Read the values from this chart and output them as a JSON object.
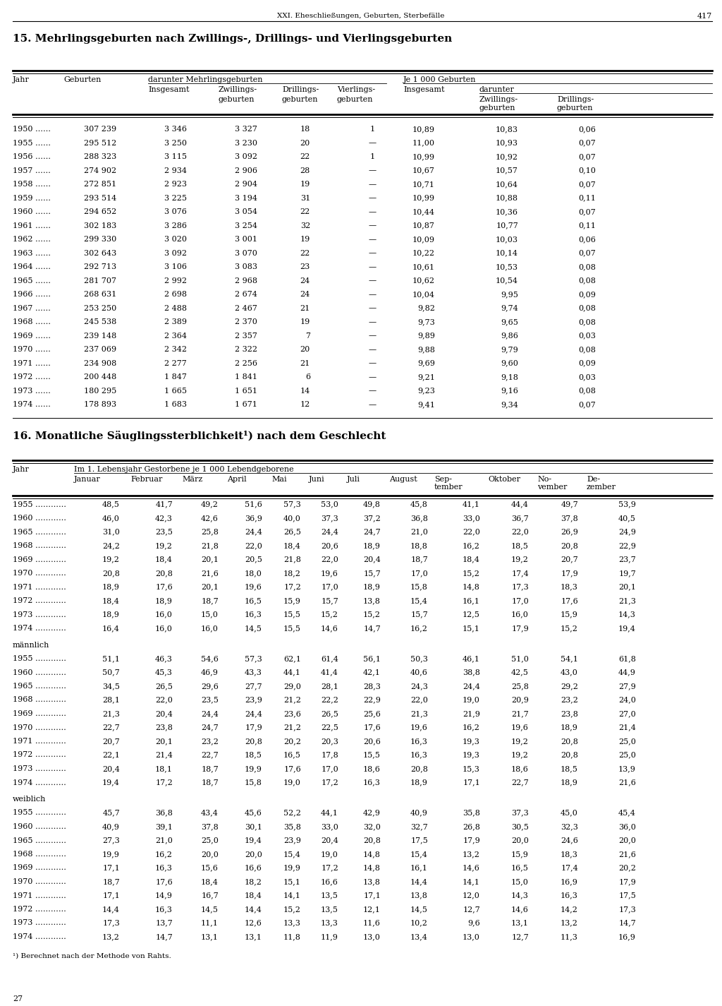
{
  "page_header": "XXI. Eheschließungen, Geburten, Sterbefälle",
  "page_number": "417",
  "section15_title": "15. Mehrlingsgeburten nach Zwillings-, Drillings- und Vierlingsgeburten",
  "section16_title": "16. Monatliche Säuglingssterblichkeit¹) nach dem Geschlecht",
  "footnote": "¹) Berechnet nach der Methode von Rahts.",
  "footer_number": "27",
  "table1_data": [
    [
      "1950 ……",
      "307 239",
      "3 346",
      "3 327",
      "18",
      "1",
      "10,89",
      "10,83",
      "0,06"
    ],
    [
      "1955 ……",
      "295 512",
      "3 250",
      "3 230",
      "20",
      "—",
      "11,00",
      "10,93",
      "0,07"
    ],
    [
      "1956 ……",
      "288 323",
      "3 115",
      "3 092",
      "22",
      "1",
      "10,99",
      "10,92",
      "0,07"
    ],
    [
      "1957 ……",
      "274 902",
      "2 934",
      "2 906",
      "28",
      "—",
      "10,67",
      "10,57",
      "0,10"
    ],
    [
      "1958 ……",
      "272 851",
      "2 923",
      "2 904",
      "19",
      "—",
      "10,71",
      "10,64",
      "0,07"
    ],
    [
      "1959 ……",
      "293 514",
      "3 225",
      "3 194",
      "31",
      "—",
      "10,99",
      "10,88",
      "0,11"
    ],
    [
      "1960 ……",
      "294 652",
      "3 076",
      "3 054",
      "22",
      "—",
      "10,44",
      "10,36",
      "0,07"
    ],
    [
      "1961 ……",
      "302 183",
      "3 286",
      "3 254",
      "32",
      "—",
      "10,87",
      "10,77",
      "0,11"
    ],
    [
      "1962 ……",
      "299 330",
      "3 020",
      "3 001",
      "19",
      "—",
      "10,09",
      "10,03",
      "0,06"
    ],
    [
      "1963 ……",
      "302 643",
      "3 092",
      "3 070",
      "22",
      "—",
      "10,22",
      "10,14",
      "0,07"
    ],
    [
      "1964 ……",
      "292 713",
      "3 106",
      "3 083",
      "23",
      "—",
      "10,61",
      "10,53",
      "0,08"
    ],
    [
      "1965 ……",
      "281 707",
      "2 992",
      "2 968",
      "24",
      "—",
      "10,62",
      "10,54",
      "0,08"
    ],
    [
      "1966 ……",
      "268 631",
      "2 698",
      "2 674",
      "24",
      "—",
      "10,04",
      "9,95",
      "0,09"
    ],
    [
      "1967 ……",
      "253 250",
      "2 488",
      "2 467",
      "21",
      "—",
      "9,82",
      "9,74",
      "0,08"
    ],
    [
      "1968 ……",
      "245 538",
      "2 389",
      "2 370",
      "19",
      "—",
      "9,73",
      "9,65",
      "0,08"
    ],
    [
      "1969 ……",
      "239 148",
      "2 364",
      "2 357",
      "7",
      "—",
      "9,89",
      "9,86",
      "0,03"
    ],
    [
      "1970 ……",
      "237 069",
      "2 342",
      "2 322",
      "20",
      "—",
      "9,88",
      "9,79",
      "0,08"
    ],
    [
      "1971 ……",
      "234 908",
      "2 277",
      "2 256",
      "21",
      "—",
      "9,69",
      "9,60",
      "0,09"
    ],
    [
      "1972 ……",
      "200 448",
      "1 847",
      "1 841",
      "6",
      "—",
      "9,21",
      "9,18",
      "0,03"
    ],
    [
      "1973 ……",
      "180 295",
      "1 665",
      "1 651",
      "14",
      "—",
      "9,23",
      "9,16",
      "0,08"
    ],
    [
      "1974 ……",
      "178 893",
      "1 683",
      "1 671",
      "12",
      "—",
      "9,41",
      "9,34",
      "0,07"
    ]
  ],
  "table2_col_headers": [
    "Januar",
    "Februar",
    "März",
    "April",
    "Mai",
    "Juni",
    "Juli",
    "August",
    "Sep-\ntember",
    "Oktober",
    "No-\nvember",
    "De-\nzember"
  ],
  "table2_gesamt_data": [
    [
      "1955 …………",
      "48,5",
      "41,7",
      "49,2",
      "51,6",
      "57,3",
      "53,0",
      "49,8",
      "45,8",
      "41,1",
      "44,4",
      "49,7",
      "53,9"
    ],
    [
      "1960 …………",
      "46,0",
      "42,3",
      "42,6",
      "36,9",
      "40,0",
      "37,3",
      "37,2",
      "36,8",
      "33,0",
      "36,7",
      "37,8",
      "40,5"
    ],
    [
      "1965 …………",
      "31,0",
      "23,5",
      "25,8",
      "24,4",
      "26,5",
      "24,4",
      "24,7",
      "21,0",
      "22,0",
      "22,0",
      "26,9",
      "24,9"
    ],
    [
      "1968 …………",
      "24,2",
      "19,2",
      "21,8",
      "22,0",
      "18,4",
      "20,6",
      "18,9",
      "18,8",
      "16,2",
      "18,5",
      "20,8",
      "22,9"
    ],
    [
      "1969 …………",
      "19,2",
      "18,4",
      "20,1",
      "20,5",
      "21,8",
      "22,0",
      "20,4",
      "18,7",
      "18,4",
      "19,2",
      "20,7",
      "23,7"
    ],
    [
      "1970 …………",
      "20,8",
      "20,8",
      "21,6",
      "18,0",
      "18,2",
      "19,6",
      "15,7",
      "17,0",
      "15,2",
      "17,4",
      "17,9",
      "19,7"
    ],
    [
      "1971 …………",
      "18,9",
      "17,6",
      "20,1",
      "19,6",
      "17,2",
      "17,0",
      "18,9",
      "15,8",
      "14,8",
      "17,3",
      "18,3",
      "20,1"
    ],
    [
      "1972 …………",
      "18,4",
      "18,9",
      "18,7",
      "16,5",
      "15,9",
      "15,7",
      "13,8",
      "15,4",
      "16,1",
      "17,0",
      "17,6",
      "21,3"
    ],
    [
      "1973 …………",
      "18,9",
      "16,0",
      "15,0",
      "16,3",
      "15,5",
      "15,2",
      "15,2",
      "15,7",
      "12,5",
      "16,0",
      "15,9",
      "14,3"
    ],
    [
      "1974 …………",
      "16,4",
      "16,0",
      "16,0",
      "14,5",
      "15,5",
      "14,6",
      "14,7",
      "16,2",
      "15,1",
      "17,9",
      "15,2",
      "19,4"
    ]
  ],
  "table2_maennlich_data": [
    [
      "1955 …………",
      "51,1",
      "46,3",
      "54,6",
      "57,3",
      "62,1",
      "61,4",
      "56,1",
      "50,3",
      "46,1",
      "51,0",
      "54,1",
      "61,8"
    ],
    [
      "1960 …………",
      "50,7",
      "45,3",
      "46,9",
      "43,3",
      "44,1",
      "41,4",
      "42,1",
      "40,6",
      "38,8",
      "42,5",
      "43,0",
      "44,9"
    ],
    [
      "1965 …………",
      "34,5",
      "26,5",
      "29,6",
      "27,7",
      "29,0",
      "28,1",
      "28,3",
      "24,3",
      "24,4",
      "25,8",
      "29,2",
      "27,9"
    ],
    [
      "1968 …………",
      "28,1",
      "22,0",
      "23,5",
      "23,9",
      "21,2",
      "22,2",
      "22,9",
      "22,0",
      "19,0",
      "20,9",
      "23,2",
      "24,0"
    ],
    [
      "1969 …………",
      "21,3",
      "20,4",
      "24,4",
      "24,4",
      "23,6",
      "26,5",
      "25,6",
      "21,3",
      "21,9",
      "21,7",
      "23,8",
      "27,0"
    ],
    [
      "1970 …………",
      "22,7",
      "23,8",
      "24,7",
      "17,9",
      "21,2",
      "22,5",
      "17,6",
      "19,6",
      "16,2",
      "19,6",
      "18,9",
      "21,4"
    ],
    [
      "1971 …………",
      "20,7",
      "20,1",
      "23,2",
      "20,8",
      "20,2",
      "20,3",
      "20,6",
      "16,3",
      "19,3",
      "19,2",
      "20,8",
      "25,0"
    ],
    [
      "1972 …………",
      "22,1",
      "21,4",
      "22,7",
      "18,5",
      "16,5",
      "17,8",
      "15,5",
      "16,3",
      "19,3",
      "19,2",
      "20,8",
      "25,0"
    ],
    [
      "1973 …………",
      "20,4",
      "18,1",
      "18,7",
      "19,9",
      "17,6",
      "17,0",
      "18,6",
      "20,8",
      "15,3",
      "18,6",
      "18,5",
      "13,9"
    ],
    [
      "1974 …………",
      "19,4",
      "17,2",
      "18,7",
      "15,8",
      "19,0",
      "17,2",
      "16,3",
      "18,9",
      "17,1",
      "22,7",
      "18,9",
      "21,6"
    ]
  ],
  "table2_weiblich_data": [
    [
      "1955 …………",
      "45,7",
      "36,8",
      "43,4",
      "45,6",
      "52,2",
      "44,1",
      "42,9",
      "40,9",
      "35,8",
      "37,3",
      "45,0",
      "45,4"
    ],
    [
      "1960 …………",
      "40,9",
      "39,1",
      "37,8",
      "30,1",
      "35,8",
      "33,0",
      "32,0",
      "32,7",
      "26,8",
      "30,5",
      "32,3",
      "36,0"
    ],
    [
      "1965 …………",
      "27,3",
      "21,0",
      "25,0",
      "19,4",
      "23,9",
      "20,4",
      "20,8",
      "17,5",
      "17,9",
      "20,0",
      "24,6",
      "20,0"
    ],
    [
      "1968 …………",
      "19,9",
      "16,2",
      "20,0",
      "20,0",
      "15,4",
      "19,0",
      "14,8",
      "15,4",
      "13,2",
      "15,9",
      "18,3",
      "21,6"
    ],
    [
      "1969 …………",
      "17,1",
      "16,3",
      "15,6",
      "16,6",
      "19,9",
      "17,2",
      "14,8",
      "16,1",
      "14,6",
      "16,5",
      "17,4",
      "20,2"
    ],
    [
      "1970 …………",
      "18,7",
      "17,6",
      "18,4",
      "18,2",
      "15,1",
      "16,6",
      "13,8",
      "14,4",
      "14,1",
      "15,0",
      "16,9",
      "17,9"
    ],
    [
      "1971 …………",
      "17,1",
      "14,9",
      "16,7",
      "18,4",
      "14,1",
      "13,5",
      "17,1",
      "13,8",
      "12,0",
      "14,3",
      "16,3",
      "17,5"
    ],
    [
      "1972 …………",
      "14,4",
      "16,3",
      "14,5",
      "14,4",
      "15,2",
      "13,5",
      "12,1",
      "14,5",
      "12,7",
      "14,6",
      "14,2",
      "17,3"
    ],
    [
      "1973 …………",
      "17,3",
      "13,7",
      "11,1",
      "12,6",
      "13,3",
      "13,3",
      "11,6",
      "10,2",
      "9,6",
      "13,1",
      "13,2",
      "14,7"
    ],
    [
      "1974 …………",
      "13,2",
      "14,7",
      "13,1",
      "13,1",
      "11,8",
      "11,9",
      "13,0",
      "13,4",
      "13,0",
      "12,7",
      "11,3",
      "16,9"
    ]
  ],
  "bg_color": "#ffffff",
  "text_color": "#000000"
}
